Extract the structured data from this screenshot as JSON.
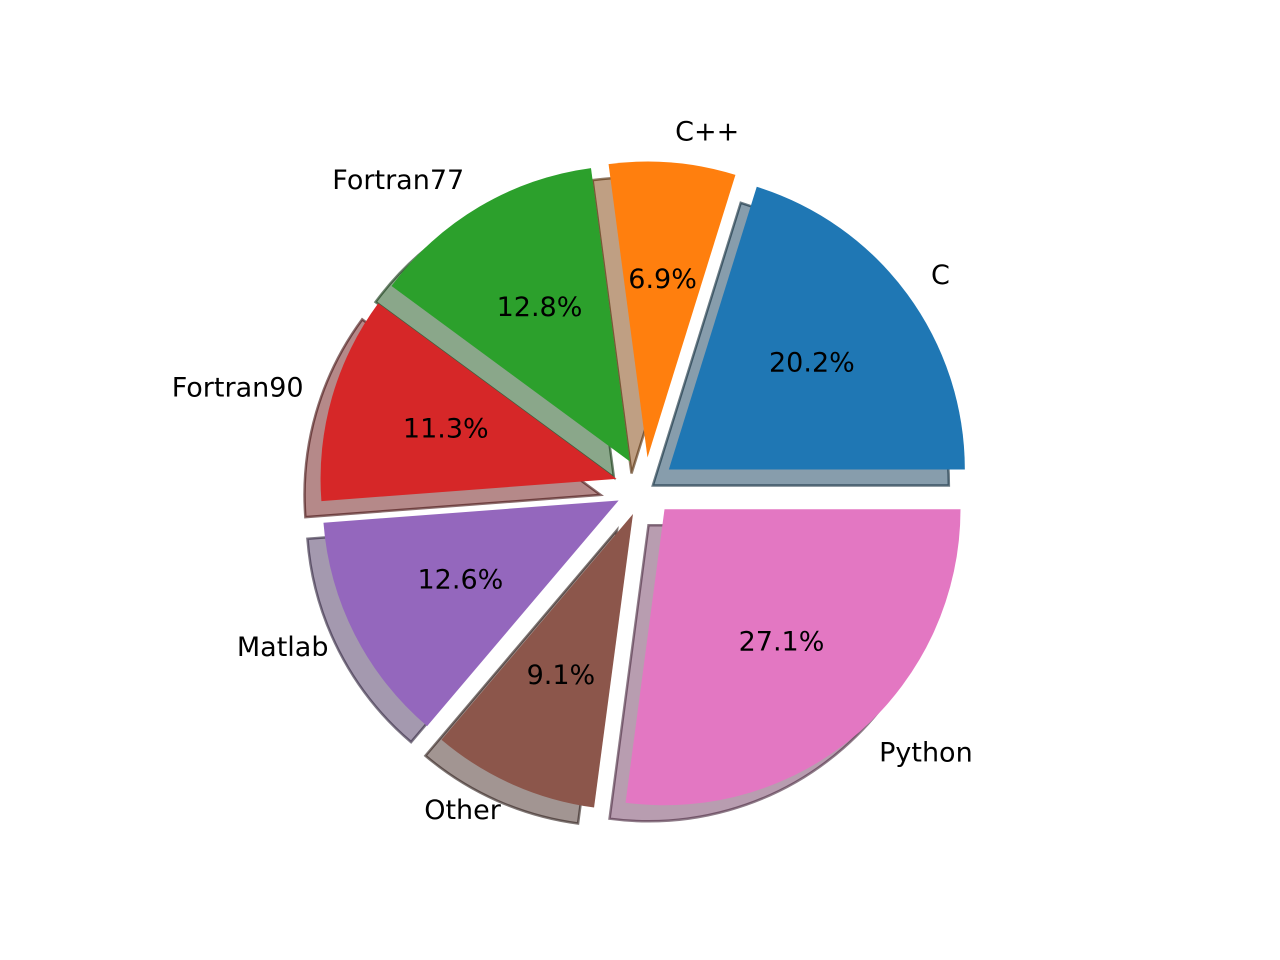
{
  "chart_data": {
    "type": "pie",
    "title": "",
    "categories": [
      "C",
      "C++",
      "Fortran77",
      "Fortran90",
      "Matlab",
      "Other",
      "Python"
    ],
    "values": [
      20.2,
      6.9,
      12.8,
      11.3,
      12.6,
      9.1,
      27.1
    ],
    "percent_labels": [
      "20.2%",
      "6.9%",
      "12.8%",
      "11.3%",
      "12.6%",
      "9.1%",
      "27.1%"
    ],
    "colors": [
      "#1f77b4",
      "#ff7f0e",
      "#2ca02c",
      "#d62728",
      "#9467bd",
      "#8c564b",
      "#e377c2"
    ],
    "start_angle_deg": 0,
    "direction": "counterclockwise",
    "exploded": true,
    "shadow": true,
    "legend": "none"
  }
}
